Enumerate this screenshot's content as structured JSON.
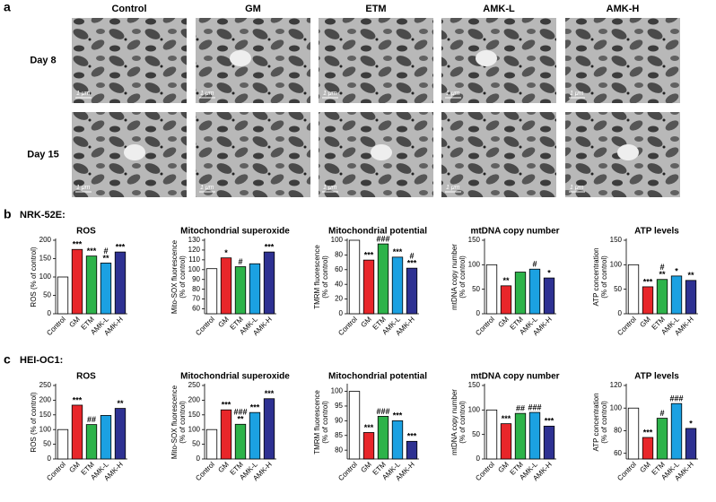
{
  "panel_a": {
    "label": "a",
    "columns": [
      "Control",
      "GM",
      "ETM",
      "AMK-L",
      "AMK-H"
    ],
    "rows": [
      "Day 8",
      "Day 15"
    ],
    "scale_bar": "1 μm"
  },
  "panels": [
    {
      "label": "b",
      "cell_line": "NRK-52E:"
    },
    {
      "label": "c",
      "cell_line": "HEI-OC1:"
    }
  ],
  "chart_data": [
    {
      "type": "bar",
      "title": "ROS",
      "y_label": [
        "ROS (% of control)"
      ],
      "categories": [
        "Control",
        "GM",
        "ETM",
        "AMK-L",
        "AMK-H"
      ],
      "values": [
        100,
        175,
        157,
        138,
        168
      ],
      "colors": [
        "#ffffff",
        "#e8262a",
        "#2db34a",
        "#1ba1e2",
        "#2e3192"
      ],
      "annotations": [
        [],
        [
          "***"
        ],
        [
          "***"
        ],
        [
          "#",
          "**"
        ],
        [
          "***"
        ]
      ],
      "ylim": [
        0,
        200
      ],
      "yticks": [
        0,
        50,
        100,
        150,
        200
      ]
    },
    {
      "type": "bar",
      "title": "Mitochondrial superoxide",
      "y_label": [
        "Mito-SOX fluorescence",
        "(% of control)"
      ],
      "categories": [
        "Control",
        "GM",
        "ETM",
        "AMK-L",
        "AMK-H"
      ],
      "values": [
        101,
        112,
        103,
        106,
        118
      ],
      "colors": [
        "#ffffff",
        "#e8262a",
        "#2db34a",
        "#1ba1e2",
        "#2e3192"
      ],
      "annotations": [
        [],
        [
          "*"
        ],
        [
          "#"
        ],
        [],
        [
          "***"
        ]
      ],
      "ylim": [
        55,
        130
      ],
      "yticks": [
        60,
        70,
        80,
        90,
        100,
        110,
        120,
        130
      ]
    },
    {
      "type": "bar",
      "title": "Mitochondrial potential",
      "y_label": [
        "TMRM fluorescence",
        "(% of control)"
      ],
      "categories": [
        "Control",
        "GM",
        "ETM",
        "AMK-L",
        "AMK-H"
      ],
      "values": [
        100,
        73,
        95,
        77,
        62
      ],
      "colors": [
        "#ffffff",
        "#e8262a",
        "#2db34a",
        "#1ba1e2",
        "#2e3192"
      ],
      "annotations": [
        [],
        [
          "***"
        ],
        [
          "###"
        ],
        [
          "***"
        ],
        [
          "#",
          "***"
        ]
      ],
      "ylim": [
        0,
        100
      ],
      "yticks": [
        0,
        20,
        40,
        60,
        80,
        100
      ]
    },
    {
      "type": "bar",
      "title": "mtDNA copy number",
      "y_label": [
        "mtDNA copy number",
        "(% of control)"
      ],
      "categories": [
        "Control",
        "GM",
        "ETM",
        "AMK-L",
        "AMK-H"
      ],
      "values": [
        100,
        57,
        85,
        91,
        73
      ],
      "colors": [
        "#ffffff",
        "#e8262a",
        "#2db34a",
        "#1ba1e2",
        "#2e3192"
      ],
      "annotations": [
        [],
        [
          "**"
        ],
        [],
        [
          "#"
        ],
        [
          "*"
        ]
      ],
      "ylim": [
        0,
        150
      ],
      "yticks": [
        0,
        50,
        100,
        150
      ]
    },
    {
      "type": "bar",
      "title": "ATP levels",
      "y_label": [
        "ATP concentration",
        "(% of control)"
      ],
      "categories": [
        "Control",
        "GM",
        "ETM",
        "AMK-L",
        "AMK-H"
      ],
      "values": [
        100,
        55,
        70,
        77,
        68
      ],
      "colors": [
        "#ffffff",
        "#e8262a",
        "#2db34a",
        "#1ba1e2",
        "#2e3192"
      ],
      "annotations": [
        [],
        [
          "***"
        ],
        [
          "#",
          "**"
        ],
        [
          "*"
        ],
        [
          "**"
        ]
      ],
      "ylim": [
        0,
        150
      ],
      "yticks": [
        0,
        50,
        100,
        150
      ]
    },
    {
      "type": "bar",
      "title": "ROS",
      "y_label": [
        "ROS (% of control)"
      ],
      "categories": [
        "Control",
        "GM",
        "ETM",
        "AMK-L",
        "AMK-H"
      ],
      "values": [
        100,
        183,
        117,
        148,
        172
      ],
      "colors": [
        "#ffffff",
        "#e8262a",
        "#2db34a",
        "#1ba1e2",
        "#2e3192"
      ],
      "annotations": [
        [],
        [
          "***"
        ],
        [
          "##"
        ],
        [],
        [
          "**"
        ]
      ],
      "ylim": [
        0,
        250
      ],
      "yticks": [
        0,
        50,
        100,
        150,
        200,
        250
      ]
    },
    {
      "type": "bar",
      "title": "Mitochondrial superoxide",
      "y_label": [
        "Mito-SOX fluorescence",
        "(% of control)"
      ],
      "categories": [
        "Control",
        "GM",
        "ETM",
        "AMK-L",
        "AMK-H"
      ],
      "values": [
        100,
        167,
        118,
        158,
        205
      ],
      "colors": [
        "#ffffff",
        "#e8262a",
        "#2db34a",
        "#1ba1e2",
        "#2e3192"
      ],
      "annotations": [
        [],
        [
          "***"
        ],
        [
          "###",
          "**"
        ],
        [
          "***"
        ],
        [
          "***"
        ]
      ],
      "ylim": [
        0,
        250
      ],
      "yticks": [
        0,
        50,
        100,
        150,
        200,
        250
      ]
    },
    {
      "type": "bar",
      "title": "Mitochondrial potential",
      "y_label": [
        "TMRM fluorescence",
        "(% of control)"
      ],
      "categories": [
        "Control",
        "GM",
        "ETM",
        "AMK-L",
        "AMK-H"
      ],
      "values": [
        100,
        86,
        91.5,
        90,
        83
      ],
      "colors": [
        "#ffffff",
        "#e8262a",
        "#2db34a",
        "#1ba1e2",
        "#2e3192"
      ],
      "annotations": [
        [],
        [
          "***"
        ],
        [
          "###"
        ],
        [
          "***"
        ],
        [
          "***"
        ]
      ],
      "ylim": [
        77,
        102
      ],
      "yticks": [
        80,
        85,
        90,
        95,
        100
      ]
    },
    {
      "type": "bar",
      "title": "mtDNA copy number",
      "y_label": [
        "mtDNA copy number",
        "(% of control)"
      ],
      "categories": [
        "Control",
        "GM",
        "ETM",
        "AMK-L",
        "AMK-H"
      ],
      "values": [
        100,
        72,
        93,
        95,
        67
      ],
      "colors": [
        "#ffffff",
        "#e8262a",
        "#2db34a",
        "#1ba1e2",
        "#2e3192"
      ],
      "annotations": [
        [],
        [
          "***"
        ],
        [
          "##"
        ],
        [
          "###"
        ],
        [
          "***"
        ]
      ],
      "ylim": [
        0,
        150
      ],
      "yticks": [
        0,
        50,
        100,
        150
      ]
    },
    {
      "type": "bar",
      "title": "ATP levels",
      "y_label": [
        "ATP concentration",
        "(% of control)"
      ],
      "categories": [
        "Control",
        "GM",
        "ETM",
        "AMK-L",
        "AMK-H"
      ],
      "values": [
        100,
        74,
        91,
        104,
        82
      ],
      "colors": [
        "#ffffff",
        "#e8262a",
        "#2db34a",
        "#1ba1e2",
        "#2e3192"
      ],
      "annotations": [
        [],
        [
          "***"
        ],
        [
          "#"
        ],
        [
          "###"
        ],
        [
          "*"
        ]
      ],
      "ylim": [
        55,
        120
      ],
      "yticks": [
        60,
        80,
        100,
        120
      ]
    }
  ]
}
